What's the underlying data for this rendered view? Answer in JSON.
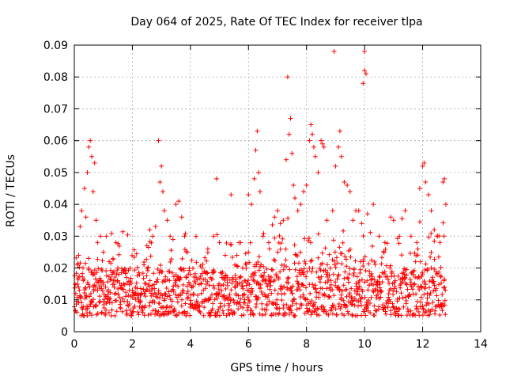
{
  "chart_data": {
    "type": "scatter",
    "title": "Day 064 of 2025, Rate Of TEC Index for receiver tlpa",
    "xlabel": "GPS time / hours",
    "ylabel": "ROTI / TECUs",
    "xlim": [
      0,
      14
    ],
    "ylim": [
      0,
      0.09
    ],
    "xticks": [
      0,
      2,
      4,
      6,
      8,
      10,
      12,
      14
    ],
    "yticks": [
      0,
      0.01,
      0.02,
      0.03,
      0.04,
      0.05,
      0.06,
      0.07,
      0.08,
      0.09
    ],
    "xtick_labels": [
      "0",
      "2",
      "4",
      "6",
      "8",
      "10",
      "12",
      "14"
    ],
    "ytick_labels": [
      "0",
      "0.01",
      "0.02",
      "0.03",
      "0.04",
      "0.05",
      "0.06",
      "0.07",
      "0.08",
      "0.09"
    ],
    "grid": true,
    "marker": "+",
    "series": [
      {
        "name": "ROTI",
        "color": "#ff0000",
        "points": [
          [
            0.05,
            0.012
          ],
          [
            0.1,
            0.015
          ],
          [
            0.15,
            0.024
          ],
          [
            0.2,
            0.033
          ],
          [
            0.25,
            0.038
          ],
          [
            0.3,
            0.02
          ],
          [
            0.35,
            0.045
          ],
          [
            0.4,
            0.036
          ],
          [
            0.45,
            0.05
          ],
          [
            0.5,
            0.058
          ],
          [
            0.55,
            0.06
          ],
          [
            0.6,
            0.055
          ],
          [
            0.65,
            0.044
          ],
          [
            0.7,
            0.053
          ],
          [
            0.75,
            0.035
          ],
          [
            0.8,
            0.028
          ],
          [
            0.9,
            0.03
          ],
          [
            1.0,
            0.025
          ],
          [
            1.1,
            0.03
          ],
          [
            1.2,
            0.022
          ],
          [
            1.3,
            0.018
          ],
          [
            1.4,
            0.016
          ],
          [
            1.5,
            0.02
          ],
          [
            1.6,
            0.014
          ],
          [
            1.7,
            0.015
          ],
          [
            1.8,
            0.017
          ],
          [
            1.9,
            0.013
          ],
          [
            2.0,
            0.013
          ],
          [
            2.2,
            0.012
          ],
          [
            2.4,
            0.021
          ],
          [
            2.5,
            0.027
          ],
          [
            2.6,
            0.032
          ],
          [
            2.7,
            0.03
          ],
          [
            2.8,
            0.033
          ],
          [
            2.9,
            0.06
          ],
          [
            2.95,
            0.047
          ],
          [
            3.0,
            0.052
          ],
          [
            3.05,
            0.044
          ],
          [
            3.1,
            0.038
          ],
          [
            3.2,
            0.035
          ],
          [
            3.3,
            0.03
          ],
          [
            3.4,
            0.029
          ],
          [
            3.5,
            0.04
          ],
          [
            3.6,
            0.041
          ],
          [
            3.7,
            0.036
          ],
          [
            3.8,
            0.03
          ],
          [
            3.9,
            0.025
          ],
          [
            4.0,
            0.018
          ],
          [
            4.2,
            0.017
          ],
          [
            4.4,
            0.02
          ],
          [
            4.6,
            0.026
          ],
          [
            4.8,
            0.03
          ],
          [
            4.9,
            0.048
          ],
          [
            5.0,
            0.028
          ],
          [
            5.2,
            0.024
          ],
          [
            5.4,
            0.043
          ],
          [
            5.6,
            0.024
          ],
          [
            5.8,
            0.02
          ],
          [
            6.0,
            0.025
          ],
          [
            6.0,
            0.043
          ],
          [
            6.1,
            0.04
          ],
          [
            6.2,
            0.048
          ],
          [
            6.25,
            0.057
          ],
          [
            6.3,
            0.063
          ],
          [
            6.35,
            0.05
          ],
          [
            6.4,
            0.044
          ],
          [
            6.5,
            0.03
          ],
          [
            6.7,
            0.028
          ],
          [
            6.9,
            0.036
          ],
          [
            7.0,
            0.038
          ],
          [
            7.1,
            0.034
          ],
          [
            7.2,
            0.035
          ],
          [
            7.3,
            0.054
          ],
          [
            7.35,
            0.08
          ],
          [
            7.4,
            0.062
          ],
          [
            7.45,
            0.067
          ],
          [
            7.5,
            0.056
          ],
          [
            7.55,
            0.046
          ],
          [
            7.6,
            0.042
          ],
          [
            7.7,
            0.038
          ],
          [
            7.8,
            0.04
          ],
          [
            7.9,
            0.044
          ],
          [
            8.0,
            0.046
          ],
          [
            8.1,
            0.06
          ],
          [
            8.15,
            0.065
          ],
          [
            8.2,
            0.062
          ],
          [
            8.25,
            0.058
          ],
          [
            8.3,
            0.055
          ],
          [
            8.4,
            0.05
          ],
          [
            8.5,
            0.06
          ],
          [
            8.55,
            0.059
          ],
          [
            8.6,
            0.058
          ],
          [
            8.7,
            0.035
          ],
          [
            8.9,
            0.038
          ],
          [
            8.95,
            0.088
          ],
          [
            9.0,
            0.052
          ],
          [
            9.1,
            0.058
          ],
          [
            9.15,
            0.063
          ],
          [
            9.2,
            0.055
          ],
          [
            9.3,
            0.047
          ],
          [
            9.4,
            0.046
          ],
          [
            9.5,
            0.044
          ],
          [
            9.6,
            0.035
          ],
          [
            9.7,
            0.038
          ],
          [
            9.8,
            0.038
          ],
          [
            9.9,
            0.034
          ],
          [
            9.95,
            0.078
          ],
          [
            10.0,
            0.088
          ],
          [
            10.0,
            0.082
          ],
          [
            10.05,
            0.081
          ],
          [
            10.1,
            0.037
          ],
          [
            10.3,
            0.04
          ],
          [
            10.5,
            0.03
          ],
          [
            10.7,
            0.028
          ],
          [
            10.9,
            0.036
          ],
          [
            11.0,
            0.035
          ],
          [
            11.2,
            0.03
          ],
          [
            11.4,
            0.038
          ],
          [
            11.6,
            0.03
          ],
          [
            11.8,
            0.028
          ],
          [
            11.9,
            0.045
          ],
          [
            12.0,
            0.052
          ],
          [
            12.05,
            0.053
          ],
          [
            12.1,
            0.047
          ],
          [
            12.2,
            0.043
          ],
          [
            12.3,
            0.038
          ],
          [
            12.4,
            0.032
          ],
          [
            12.5,
            0.03
          ],
          [
            12.6,
            0.028
          ],
          [
            12.7,
            0.047
          ],
          [
            12.75,
            0.048
          ],
          [
            12.8,
            0.04
          ]
        ],
        "dense_band": {
          "x_range": [
            0,
            12.8
          ],
          "typical_range": [
            0.005,
            0.02
          ]
        }
      }
    ]
  }
}
